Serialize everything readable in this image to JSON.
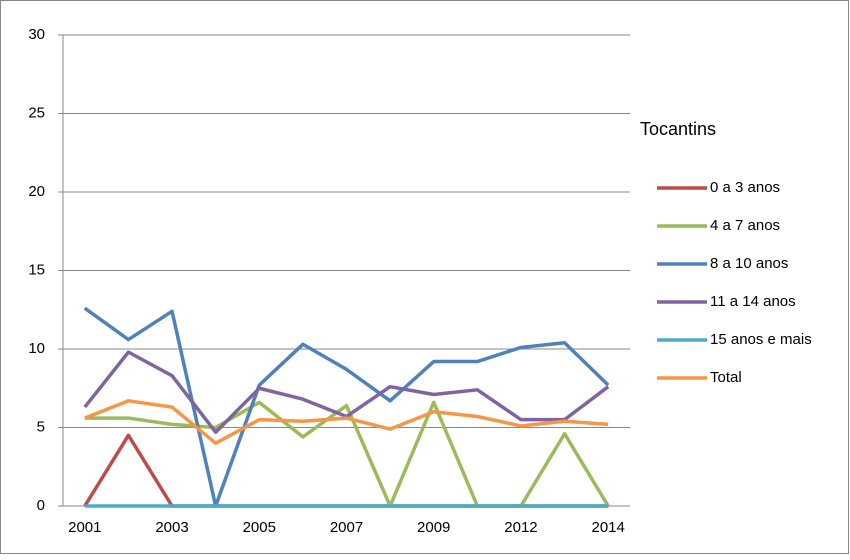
{
  "chart_data": {
    "type": "line",
    "title": "Tocantins",
    "categories": [
      "2001",
      null,
      "2003",
      null,
      "2005",
      null,
      "2007",
      null,
      "2009",
      null,
      "2012",
      null,
      "2014"
    ],
    "series": [
      {
        "name": "0 a 3 anos",
        "color": "#be4b48",
        "values": [
          0,
          4.5,
          0,
          0,
          0,
          0,
          0,
          0,
          0,
          0,
          0,
          0,
          0
        ]
      },
      {
        "name": "4 a 7 anos",
        "color": "#9bbb59",
        "values": [
          5.6,
          5.6,
          5.2,
          5.0,
          6.6,
          4.4,
          6.4,
          0,
          6.6,
          0,
          0,
          4.6,
          0
        ]
      },
      {
        "name": "8 a 10 anos",
        "color": "#4f81bd",
        "values": [
          12.6,
          10.6,
          12.4,
          0,
          7.7,
          10.3,
          8.7,
          6.7,
          9.2,
          9.2,
          10.1,
          10.4,
          7.7
        ]
      },
      {
        "name": "11 a 14 anos",
        "color": "#8064a2",
        "values": [
          6.3,
          9.8,
          8.3,
          4.7,
          7.5,
          6.8,
          5.7,
          7.6,
          7.1,
          7.4,
          5.5,
          5.5,
          7.6
        ]
      },
      {
        "name": "15 anos e mais",
        "color": "#4bacc6",
        "values": [
          0,
          0,
          0,
          0,
          0,
          0,
          0,
          0,
          0,
          0,
          0,
          0,
          0
        ]
      },
      {
        "name": "Total",
        "color": "#f79646",
        "values": [
          5.6,
          6.7,
          6.3,
          4.0,
          5.5,
          5.4,
          5.6,
          4.9,
          6.0,
          5.7,
          5.1,
          5.4,
          5.2
        ]
      }
    ],
    "ylim": [
      0,
      30
    ],
    "yticks": [
      0,
      5,
      10,
      15,
      20,
      25,
      30
    ],
    "grid": true,
    "legend": "right"
  }
}
